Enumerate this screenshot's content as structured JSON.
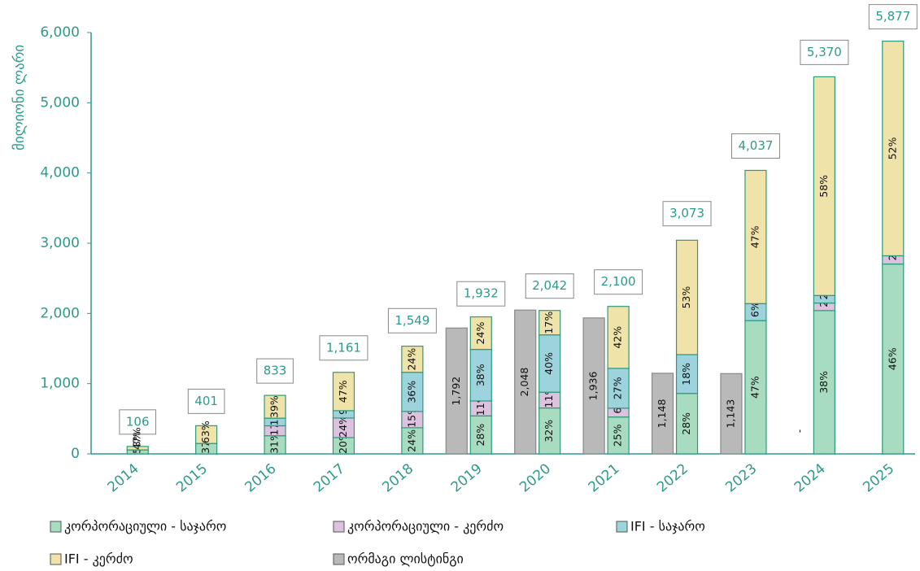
{
  "chart_data": {
    "type": "bar",
    "stacked": true,
    "y_axis_label": "მილიონი ლარი",
    "categories": [
      "2014",
      "2015",
      "2016",
      "2017",
      "2018",
      "2019",
      "2020",
      "2021",
      "2022",
      "2023",
      "2024",
      "2025"
    ],
    "ylim": [
      0,
      6000
    ],
    "yticks": [
      {
        "value": 0,
        "label": "0"
      },
      {
        "value": 1000,
        "label": "1,000"
      },
      {
        "value": 2000,
        "label": "2,000"
      },
      {
        "value": 3000,
        "label": "3,000"
      },
      {
        "value": 4000,
        "label": "4,000"
      },
      {
        "value": 5000,
        "label": "5,000"
      },
      {
        "value": 6000,
        "label": "6,000"
      }
    ],
    "totals": {
      "values": [
        106,
        401,
        833,
        1161,
        1549,
        1932,
        2042,
        2100,
        3073,
        4037,
        5370,
        5877
      ],
      "value_labels": [
        "106",
        "401",
        "833",
        "1,161",
        "1,549",
        "1,932",
        "2,042",
        "2,100",
        "3,073",
        "4,037",
        "5,370",
        "5,877"
      ]
    },
    "series": [
      {
        "name": "კორპორაციული - საჯარო",
        "color": "#a8dcc0",
        "values": [
          53,
          37,
          31,
          20,
          24,
          28,
          32,
          25,
          28,
          47,
          38,
          46
        ],
        "value_labels": [
          "53%",
          "37%",
          "31%",
          "20%",
          "24%",
          "28%",
          "32%",
          "25%",
          "28%",
          "47%",
          "38%",
          "46%"
        ]
      },
      {
        "name": "კორპორაციული - კერძო",
        "color": "#dcc2de",
        "values": [
          null,
          null,
          17,
          24,
          15,
          11,
          11,
          6,
          null,
          null,
          2,
          2
        ],
        "value_labels": [
          null,
          null,
          "17%",
          "24%",
          "15%",
          "11%",
          "11%",
          "6%",
          null,
          null,
          "2%",
          "2%"
        ]
      },
      {
        "name": "IFI - საჯარო",
        "color": "#9dd3dc",
        "values": [
          null,
          null,
          13,
          9,
          36,
          38,
          40,
          27,
          18,
          6,
          2,
          null
        ],
        "value_labels": [
          null,
          null,
          "13%",
          "9%",
          "36%",
          "38%",
          "40%",
          "27%",
          "18%",
          "6%",
          "2%",
          null
        ]
      },
      {
        "name": "IFI - კერძო",
        "color": "#efe3a9",
        "values": [
          47,
          63,
          39,
          47,
          24,
          24,
          17,
          42,
          53,
          47,
          58,
          52
        ],
        "value_labels": [
          "47%",
          "63%",
          "39%",
          "47%",
          "24%",
          "24%",
          "17%",
          "42%",
          "53%",
          "47%",
          "58%",
          "52%"
        ]
      }
    ],
    "dual_listing": {
      "name": "ორმაგი ლისტინგი",
      "color": "#b9b9b9",
      "values": [
        null,
        null,
        null,
        null,
        null,
        1792,
        2048,
        1936,
        1148,
        1143,
        null,
        null
      ],
      "value_labels": [
        null,
        null,
        null,
        null,
        null,
        "1,792",
        "2,048",
        "1,936",
        "1,148",
        "1,143",
        "-",
        null
      ]
    }
  }
}
